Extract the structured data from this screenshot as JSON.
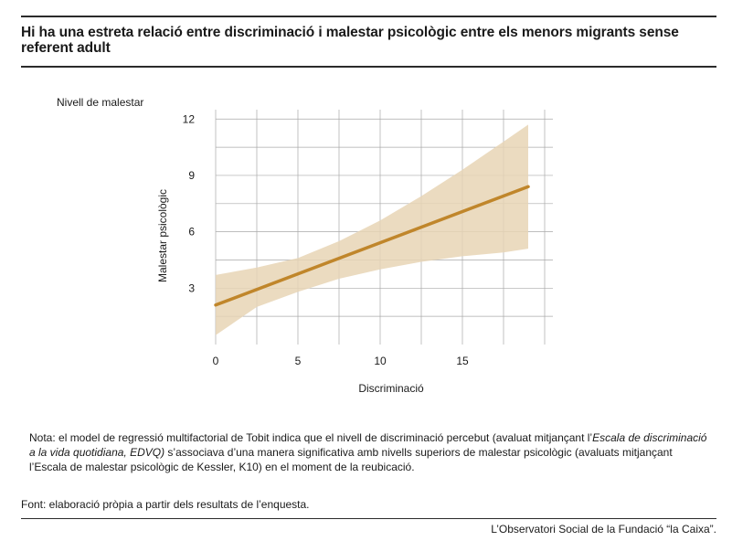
{
  "title": "Hi ha una estreta relació entre discriminació i malestar psicològic entre els menors migrants sense referent adult",
  "chart_data": {
    "type": "line",
    "title": "",
    "top_label": "Nivell de malestar",
    "xlabel": "Discriminació",
    "ylabel": "Malestar psicològic",
    "xlim": [
      0,
      20.5
    ],
    "ylim": [
      0,
      12.5
    ],
    "x_ticks": [
      0,
      5,
      10,
      15
    ],
    "y_ticks": [
      3,
      6,
      9,
      12
    ],
    "series": [
      {
        "x": [
          0,
          19
        ],
        "y": [
          2.1,
          8.4
        ]
      }
    ],
    "confidence_band": {
      "x": [
        0,
        2.5,
        5,
        7.5,
        10,
        12.5,
        15,
        17.5,
        19
      ],
      "lower": [
        0.5,
        2.0,
        2.8,
        3.5,
        4.0,
        4.4,
        4.7,
        4.9,
        5.1
      ],
      "upper": [
        3.7,
        4.1,
        4.6,
        5.5,
        6.6,
        7.9,
        9.3,
        10.8,
        11.7
      ]
    },
    "colors": {
      "line": "#c0862b",
      "band": "#e8d5b5",
      "grid": "#a9a9a9"
    }
  },
  "note": {
    "part1": "Nota: el model de regressió multifactorial de Tobit indica que el nivell de discriminació percebut (avaluat mitjançant l’",
    "italic": "Escala de discriminació a la vida quotidiana, EDVQ)",
    "part2": " s’associava d’una manera significativa amb nivells superiors de malestar psicològic (avaluats mitjançant l’Escala de malestar psicològic de Kessler, K10) en el moment de la reubicació."
  },
  "source": "Font: elaboració pròpia a partir dels resultats de l’enquesta.",
  "footer": "L’Observatori Social de la Fundació “la Caixa”."
}
